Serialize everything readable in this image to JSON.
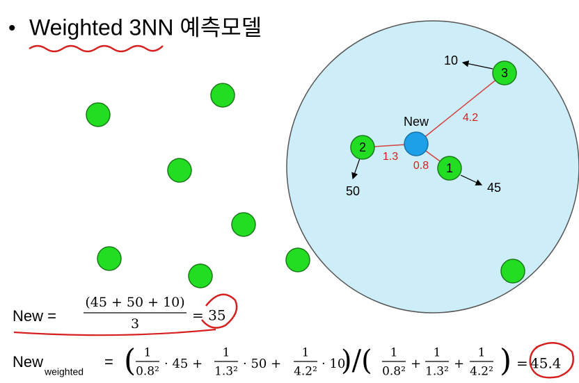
{
  "title": {
    "bullet": "•",
    "text": "Weighted 3NN 예측모델"
  },
  "diagram": {
    "new_label": "New",
    "neighbors": [
      {
        "rank": "1",
        "distance": "0.8",
        "value": "45"
      },
      {
        "rank": "2",
        "distance": "1.3",
        "value": "50"
      },
      {
        "rank": "3",
        "distance": "4.2",
        "value": "10"
      }
    ]
  },
  "formula_plain": {
    "lhs": "New =",
    "numerator": "(45 + 50 + 10)",
    "denominator": "3",
    "result": "= 35"
  },
  "formula_weighted": {
    "lhs": "New",
    "subscript": "weighted",
    "equals": "=",
    "open": "(",
    "terms": [
      {
        "numerator": "1",
        "denominator": "0.8²",
        "factor": "· 45 +"
      },
      {
        "numerator": "1",
        "denominator": "1.3²",
        "factor": "· 50 +"
      },
      {
        "numerator": "1",
        "denominator": "4.2²",
        "factor": "· 10"
      }
    ],
    "divide": ")/(",
    "weights": [
      {
        "numerator": "1",
        "denominator": "0.8²",
        "op": "+"
      },
      {
        "numerator": "1",
        "denominator": "1.3²",
        "op": "+"
      },
      {
        "numerator": "1",
        "denominator": "4.2²"
      }
    ],
    "close": ")",
    "result_equals": "=",
    "result": "45.4"
  }
}
